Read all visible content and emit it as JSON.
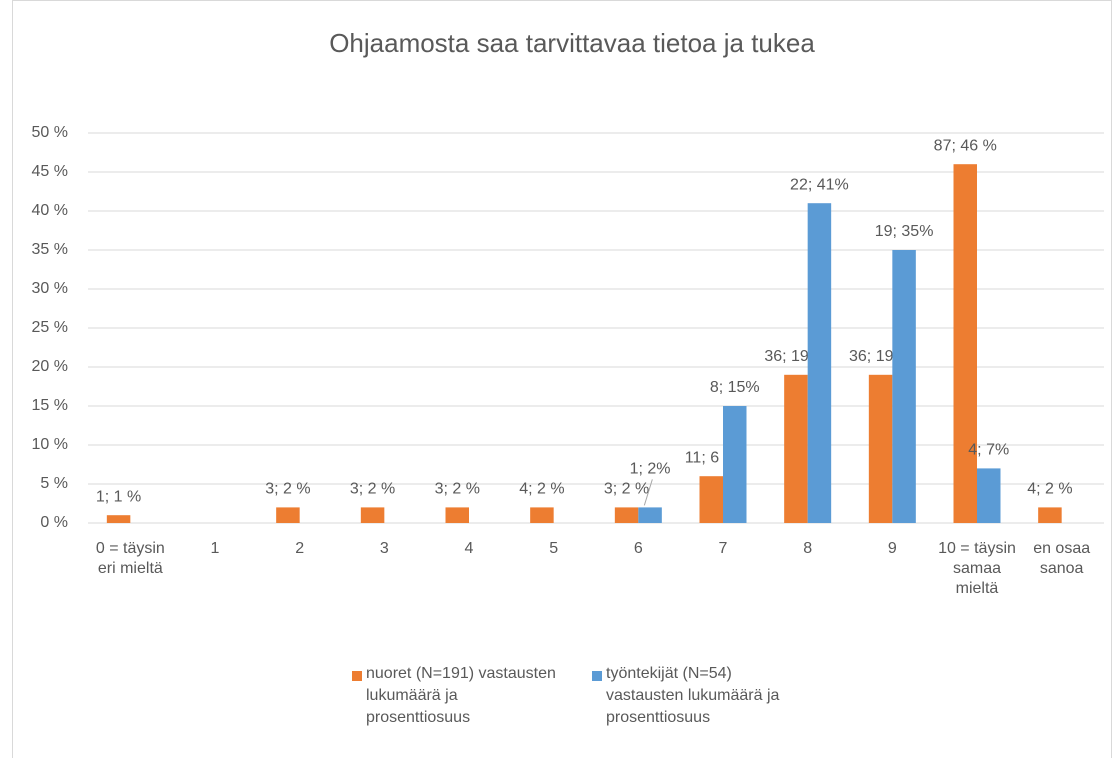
{
  "chart_data": {
    "type": "bar",
    "title": "Ohjaamosta saa tarvittavaa tietoa ja tukea",
    "categories": [
      "0 = täysin eri mieltä",
      "1",
      "2",
      "3",
      "4",
      "5",
      "6",
      "7",
      "8",
      "9",
      "10 = täysin samaa mieltä",
      "en osaa sanoa"
    ],
    "series": [
      {
        "name": "nuoret (N=191) vastausten lukumäärä ja prosenttiosuus",
        "color": "#ed7d31",
        "values": [
          1,
          null,
          2,
          2,
          2,
          2,
          2,
          6,
          19,
          19,
          46,
          2
        ],
        "value_labels": [
          "1; 1 %",
          null,
          "3; 2 %",
          "3; 2 %",
          "3; 2 %",
          "4; 2 %",
          "3; 2 %",
          "11; 6 %",
          "36; 19 %",
          "36; 19 %",
          "87; 46 %",
          "4; 2 %"
        ]
      },
      {
        "name": "työntekijät (N=54) vastausten lukumäärä ja prosenttiosuus",
        "color": "#5b9bd5",
        "values": [
          null,
          null,
          null,
          null,
          null,
          null,
          2,
          15,
          41,
          35,
          7,
          null
        ],
        "value_labels": [
          null,
          null,
          null,
          null,
          null,
          null,
          "1; 2%",
          "8; 15%",
          "22; 41%",
          "19; 35%",
          "4; 7%",
          null
        ]
      }
    ],
    "ylim": [
      0,
      50
    ],
    "yticks": [
      {
        "value": 0,
        "label": "0 %"
      },
      {
        "value": 5,
        "label": "5 %"
      },
      {
        "value": 10,
        "label": "10 %"
      },
      {
        "value": 15,
        "label": "15 %"
      },
      {
        "value": 20,
        "label": "20 %"
      },
      {
        "value": 25,
        "label": "25 %"
      },
      {
        "value": 30,
        "label": "30 %"
      },
      {
        "value": 35,
        "label": "35 %"
      },
      {
        "value": 40,
        "label": "40 %"
      },
      {
        "value": 45,
        "label": "45 %"
      },
      {
        "value": 50,
        "label": "50 %"
      }
    ],
    "grid": true,
    "legend": "bottom"
  }
}
